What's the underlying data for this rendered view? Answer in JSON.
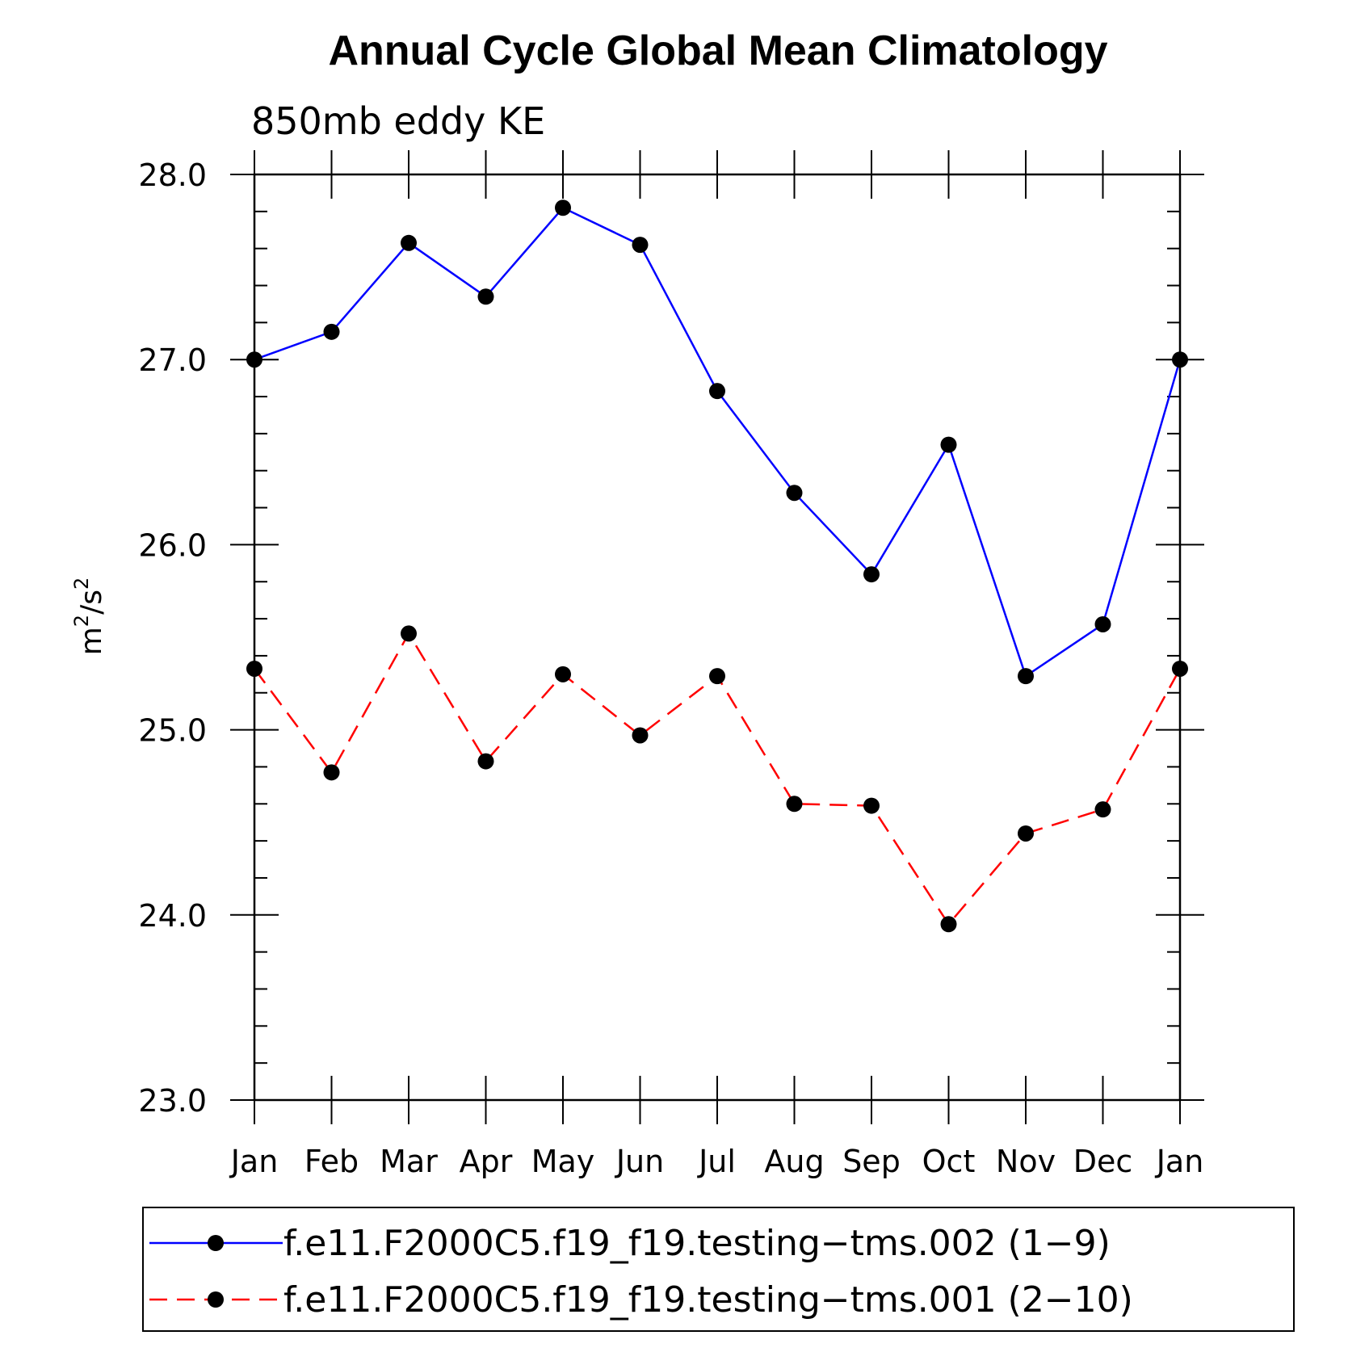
{
  "chart_data": {
    "type": "line",
    "title": "Annual Cycle Global Mean Climatology",
    "subtitle": "850mb eddy KE",
    "ylabel": "m",
    "ylabel_sup1": "2",
    "ylabel_mid": "/s",
    "ylabel_sup2": "2",
    "xlabel": "",
    "categories": [
      "Jan",
      "Feb",
      "Mar",
      "Apr",
      "May",
      "Jun",
      "Jul",
      "Aug",
      "Sep",
      "Oct",
      "Nov",
      "Dec",
      "Jan"
    ],
    "ylim": [
      23.0,
      28.0
    ],
    "yticks": [
      "23.0",
      "24.0",
      "25.0",
      "26.0",
      "27.0",
      "28.0"
    ],
    "grid": false,
    "legend_position": "bottom",
    "series": [
      {
        "name": "f.e11.F2000C5.f19_f19.testing−tms.002 (1−9)",
        "color": "#0000ff",
        "dash": "solid",
        "values": [
          27.0,
          27.15,
          27.63,
          27.34,
          27.82,
          27.62,
          26.83,
          26.28,
          25.84,
          26.54,
          25.29,
          25.57,
          27.0
        ]
      },
      {
        "name": "f.e11.F2000C5.f19_f19.testing−tms.001 (2−10)",
        "color": "#ff0000",
        "dash": "dashed",
        "values": [
          25.33,
          24.77,
          25.52,
          24.83,
          25.3,
          24.97,
          25.29,
          24.6,
          24.59,
          23.95,
          24.44,
          24.57,
          25.33
        ]
      }
    ]
  }
}
